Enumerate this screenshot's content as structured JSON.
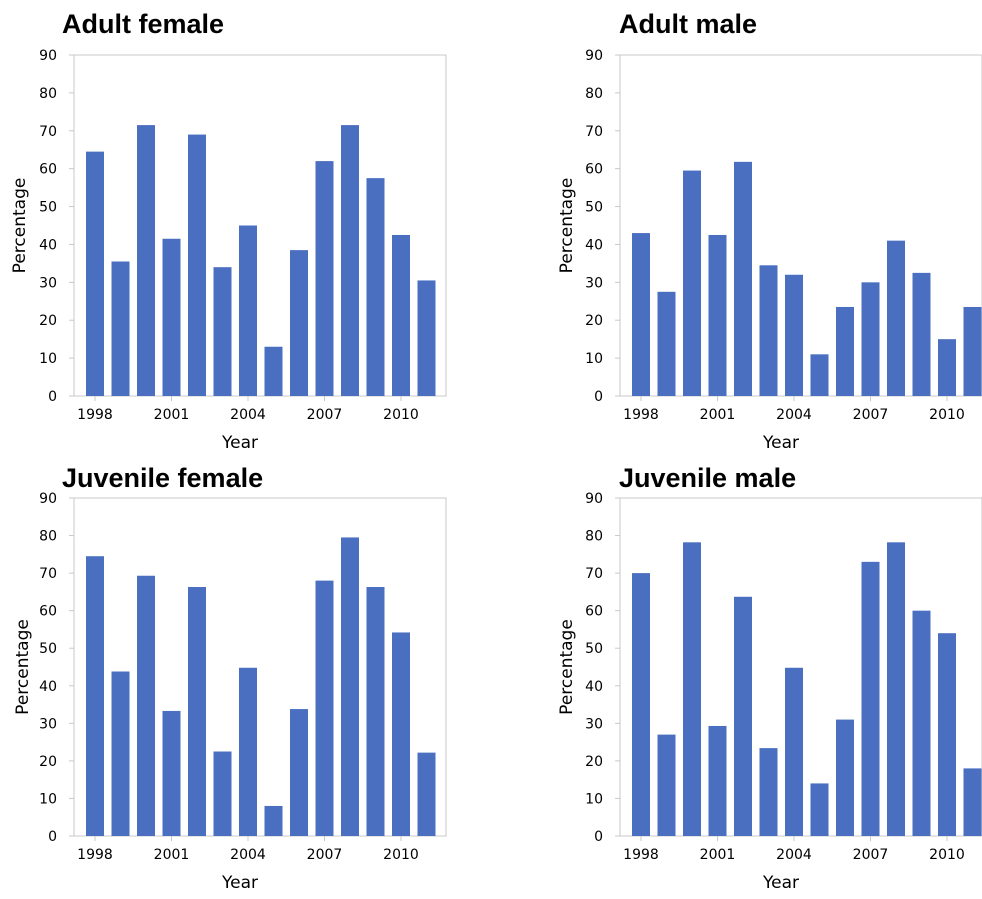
{
  "chart_data": [
    {
      "type": "bar",
      "title": "Adult female",
      "xlabel": "Year",
      "ylabel": "Percentage",
      "ylim": [
        0,
        90
      ],
      "yticks": [
        0,
        10,
        20,
        30,
        40,
        50,
        60,
        70,
        80,
        90
      ],
      "xtick_labels": [
        "1998",
        "2001",
        "2004",
        "2007",
        "2010"
      ],
      "categories": [
        "1998",
        "1999",
        "2000",
        "2001",
        "2002",
        "2003",
        "2004",
        "2005",
        "2006",
        "2007",
        "2008",
        "2009",
        "2010",
        "2011"
      ],
      "values": [
        64.5,
        35.5,
        71.5,
        41.5,
        69,
        34,
        45,
        13,
        38.5,
        62,
        71.5,
        57.5,
        42.5,
        30.5
      ],
      "grid": false
    },
    {
      "type": "bar",
      "title": "Adult male",
      "xlabel": "Year",
      "ylabel": "Percentage",
      "ylim": [
        0,
        90
      ],
      "yticks": [
        0,
        10,
        20,
        30,
        40,
        50,
        60,
        70,
        80,
        90
      ],
      "xtick_labels": [
        "1998",
        "2001",
        "2004",
        "2007",
        "2010"
      ],
      "categories": [
        "1998",
        "1999",
        "2000",
        "2001",
        "2002",
        "2003",
        "2004",
        "2005",
        "2006",
        "2007",
        "2008",
        "2009",
        "2010",
        "2011"
      ],
      "values": [
        43,
        27.5,
        59.5,
        42.5,
        61.8,
        34.5,
        32,
        11,
        23.5,
        30,
        41,
        32.5,
        15,
        23.5
      ],
      "grid": false
    },
    {
      "type": "bar",
      "title": "Juvenile female",
      "xlabel": "Year",
      "ylabel": "Percentage",
      "ylim": [
        0,
        90
      ],
      "yticks": [
        0,
        10,
        20,
        30,
        40,
        50,
        60,
        70,
        80,
        90
      ],
      "xtick_labels": [
        "1998",
        "2001",
        "2004",
        "2007",
        "2010"
      ],
      "categories": [
        "1998",
        "1999",
        "2000",
        "2001",
        "2002",
        "2003",
        "2004",
        "2005",
        "2006",
        "2007",
        "2008",
        "2009",
        "2010",
        "2011"
      ],
      "values": [
        74.5,
        43.8,
        69.3,
        33.3,
        66.3,
        22.5,
        44.8,
        8,
        33.8,
        68,
        79.5,
        66.3,
        54.2,
        22.2
      ],
      "grid": false
    },
    {
      "type": "bar",
      "title": "Juvenile male",
      "xlabel": "Year",
      "ylabel": "Percentage",
      "ylim": [
        0,
        90
      ],
      "yticks": [
        0,
        10,
        20,
        30,
        40,
        50,
        60,
        70,
        80,
        90
      ],
      "xtick_labels": [
        "1998",
        "2001",
        "2004",
        "2007",
        "2010"
      ],
      "categories": [
        "1998",
        "1999",
        "2000",
        "2001",
        "2002",
        "2003",
        "2004",
        "2005",
        "2006",
        "2007",
        "2008",
        "2009",
        "2010",
        "2011"
      ],
      "values": [
        70,
        27,
        78.2,
        29.3,
        63.7,
        23.4,
        44.8,
        14,
        31,
        73,
        78.2,
        60,
        54,
        18
      ],
      "grid": false
    }
  ],
  "colors": {
    "bar": "#4a6fc1",
    "frame": "#c8c8c8",
    "text": "#000000"
  }
}
